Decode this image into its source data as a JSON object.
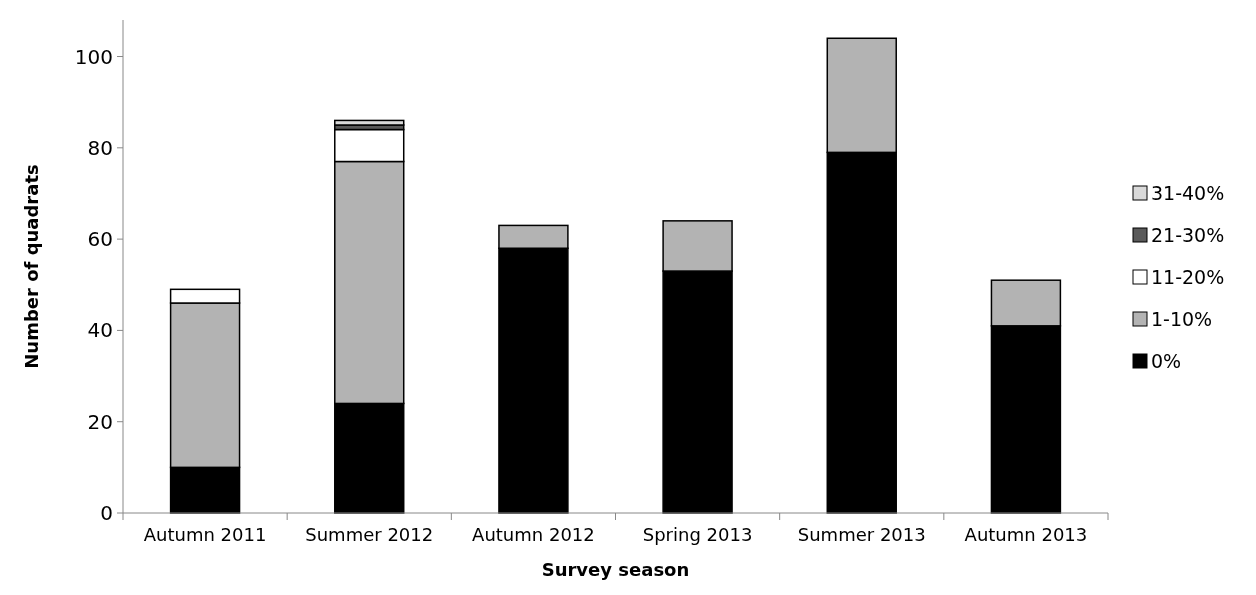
{
  "chart_data": {
    "type": "bar",
    "stacked": true,
    "xlabel": "Survey season",
    "ylabel": "Number of quadrats",
    "categories": [
      "Autumn 2011",
      "Summer 2012",
      "Autumn 2012",
      "Spring 2013",
      "Summer 2013",
      "Autumn 2013"
    ],
    "series": [
      {
        "name": "0%",
        "color": "#000000",
        "values": [
          10,
          24,
          58,
          53,
          79,
          41
        ]
      },
      {
        "name": "1-10%",
        "color": "#b3b3b3",
        "values": [
          36,
          53,
          5,
          11,
          25,
          10
        ]
      },
      {
        "name": "11-20%",
        "color": "#ffffff",
        "values": [
          3,
          7,
          null,
          null,
          null,
          null
        ]
      },
      {
        "name": "21-30%",
        "color": "#595959",
        "values": [
          null,
          1,
          null,
          null,
          null,
          null
        ]
      },
      {
        "name": "31-40%",
        "color": "#d9d9d9",
        "values": [
          null,
          1,
          null,
          null,
          null,
          null
        ]
      }
    ],
    "ylim": [
      0,
      108
    ],
    "yticks": [
      0,
      20,
      40,
      60,
      80,
      100
    ],
    "grid": false,
    "legend": "right"
  }
}
